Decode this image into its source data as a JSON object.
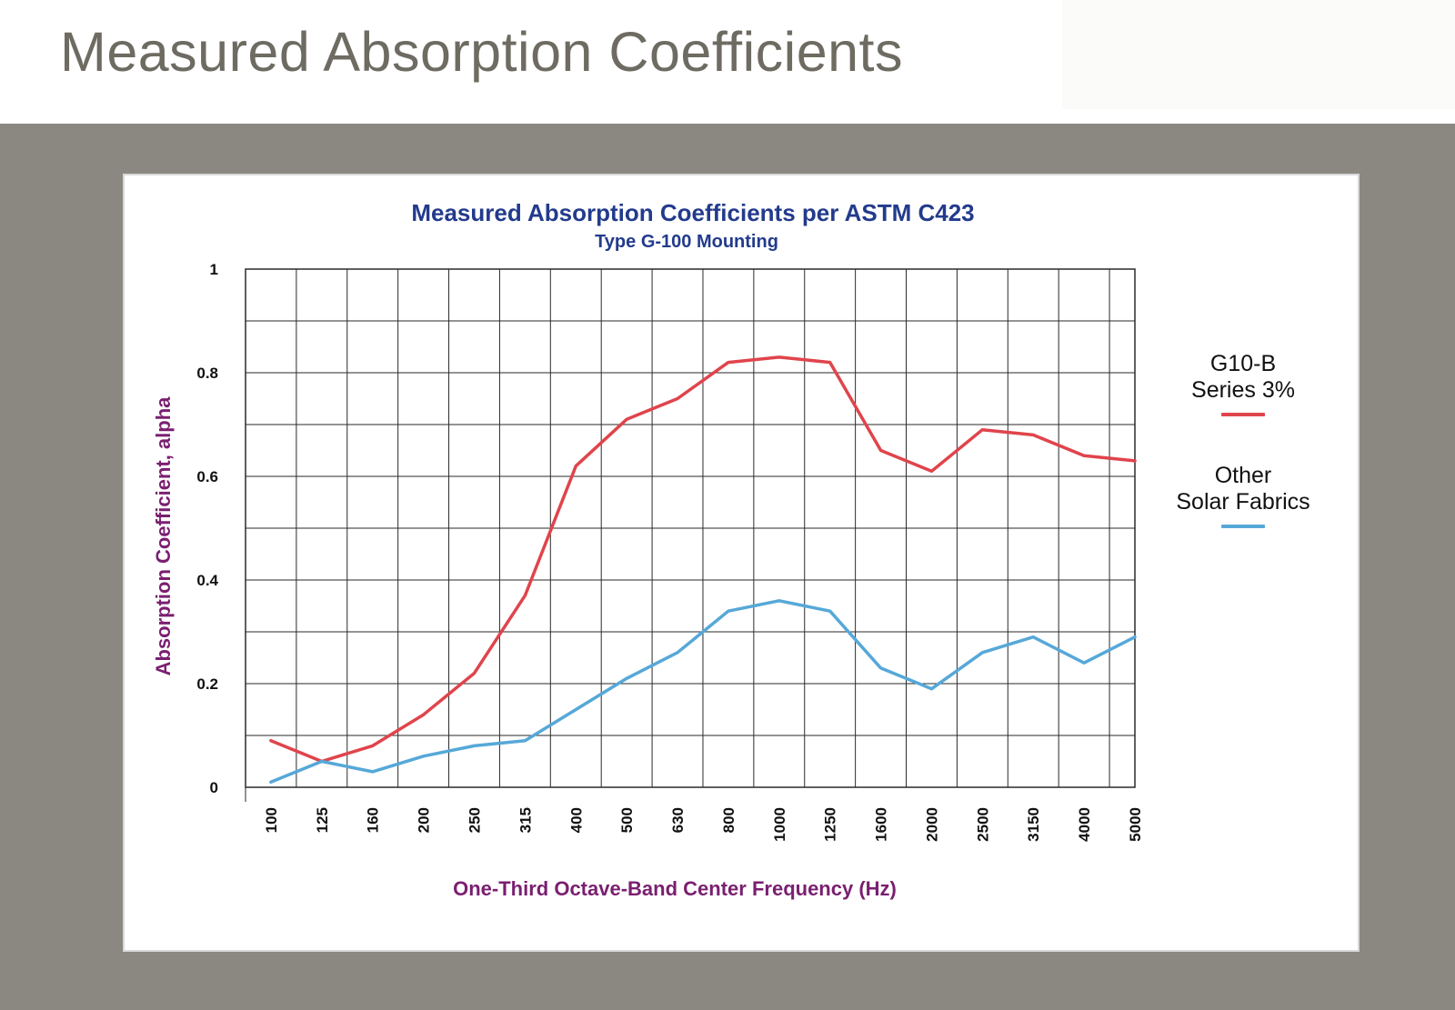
{
  "page": {
    "title": "Measured Absorption Coefficients"
  },
  "chart_data": {
    "type": "line",
    "title": "Measured Absorption Coefficients per ASTM C423",
    "subtitle": "Type G-100 Mounting",
    "xlabel": "One-Third Octave-Band Center Frequency (Hz)",
    "ylabel": "Absorption Coefficient, alpha",
    "categories": [
      "100",
      "125",
      "160",
      "200",
      "250",
      "315",
      "400",
      "500",
      "630",
      "800",
      "1000",
      "1250",
      "1600",
      "2000",
      "2500",
      "3150",
      "4000",
      "5000"
    ],
    "ylim": [
      0,
      1
    ],
    "yticks": [
      0,
      0.2,
      0.4,
      0.6,
      0.8,
      1
    ],
    "ytick_labels": [
      "0",
      "0.2",
      "0.4",
      "0.6",
      "0.8",
      "1"
    ],
    "grid": true,
    "legend_position": "right",
    "series": [
      {
        "name": "G10-B\nSeries 3%",
        "color": "#e0444c",
        "values": [
          0.09,
          0.05,
          0.08,
          0.14,
          0.22,
          0.37,
          0.62,
          0.71,
          0.75,
          0.82,
          0.83,
          0.82,
          0.65,
          0.61,
          0.69,
          0.68,
          0.64,
          0.63
        ]
      },
      {
        "name": "Other\nSolar Fabrics",
        "color": "#56a8d8",
        "values": [
          0.01,
          0.05,
          0.03,
          0.06,
          0.08,
          0.09,
          0.15,
          0.21,
          0.26,
          0.34,
          0.36,
          0.34,
          0.23,
          0.19,
          0.26,
          0.29,
          0.24,
          0.29
        ]
      }
    ]
  },
  "colors": {
    "title_text": "#6e6b62",
    "backdrop": "#8b8882",
    "chart_title": "#233b8c",
    "axis_label": "#7a1f70",
    "grid": "#2a2a2a"
  }
}
